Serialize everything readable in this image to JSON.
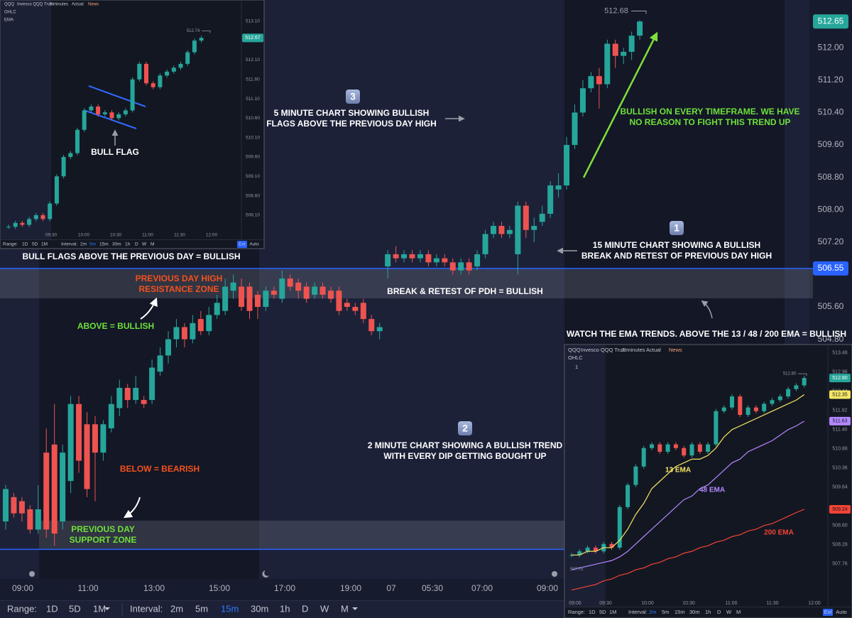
{
  "chart_data": [
    {
      "type": "candlestick",
      "ylim": [
        498.88,
        513.18
      ],
      "yticks": [
        {
          "value": 512,
          "label": "512.00"
        },
        {
          "value": 511.2,
          "label": "511.20"
        },
        {
          "value": 510.4,
          "label": "510.40"
        },
        {
          "value": 509.6,
          "label": "509.60"
        },
        {
          "value": 508.8,
          "label": "508.80"
        },
        {
          "value": 508,
          "label": "508.00"
        },
        {
          "value": 507.2,
          "label": "507.20"
        },
        {
          "value": 505.6,
          "label": "505.60"
        },
        {
          "value": 504.8,
          "label": "504.80"
        }
      ],
      "grid": false,
      "xticks": [
        "09:00",
        "11:00",
        "13:00",
        "15:00",
        "17:00",
        "19:00",
        "07",
        "05:30",
        "07:00",
        "09:00"
      ],
      "up_color": "#26a69a",
      "down_color": "#ef5350",
      "open": [
        500.3,
        500.9,
        500.8,
        500.6,
        500.1,
        502.0,
        502.2,
        500.3,
        501.3,
        503.2,
        502.7,
        502.7,
        502.0,
        502.6,
        503.1,
        503.6,
        503.3,
        503.3,
        503.3,
        504.0,
        504.4,
        504.8,
        505.1,
        504.8,
        505.3,
        505.0,
        505.4,
        505.5,
        506.0,
        506.1,
        506.1,
        505.9,
        505.6,
        506.0,
        505.8,
        506.3,
        506.2,
        506.1,
        505.9,
        506.1,
        506.0,
        506.0,
        505.7,
        505.6,
        505.7,
        505.3,
        505.0,
        506.6,
        506.9,
        506.8,
        506.9,
        506.8,
        506.9,
        506.7,
        506.8,
        506.7,
        506.5,
        506.7,
        506.6,
        506.9,
        507.4,
        507.6,
        507.4,
        506.9,
        508.1,
        507.5,
        507.7,
        507.9,
        508.5,
        508.6,
        509.6,
        510.4,
        511.0,
        511.3,
        511.1,
        512.1,
        511.8,
        511.9,
        512.3
      ],
      "high": [
        501.2,
        501.0,
        500.9,
        500.7,
        501.2,
        502.6,
        503.2,
        502.2,
        503.4,
        503.4,
        503.0,
        502.9,
        502.8,
        503.4,
        503.8,
        503.7,
        503.9,
        503.4,
        504.3,
        504.6,
        505.0,
        505.3,
        505.2,
        505.4,
        505.5,
        505.6,
        505.9,
        506.3,
        506.4,
        506.3,
        506.2,
        506.0,
        506.1,
        506.1,
        506.5,
        506.4,
        506.3,
        506.2,
        506.2,
        506.2,
        506.1,
        506.1,
        505.8,
        505.7,
        505.8,
        505.4,
        505.2,
        507.0,
        507.1,
        507.0,
        507.0,
        507.0,
        507.0,
        506.9,
        506.9,
        506.8,
        506.8,
        506.8,
        507.0,
        507.5,
        507.7,
        507.7,
        507.6,
        508.2,
        508.2,
        507.8,
        508.1,
        508.7,
        508.9,
        509.8,
        510.6,
        511.2,
        511.4,
        511.5,
        512.2,
        512.2,
        512.0,
        512.4,
        512.68
      ],
      "low": [
        500.1,
        500.4,
        500.3,
        500.0,
        500.0,
        499.9,
        499.7,
        500.1,
        501.0,
        501.5,
        500.9,
        500.8,
        501.8,
        502.5,
        502.9,
        503.1,
        503.2,
        503.1,
        503.2,
        503.9,
        504.2,
        504.6,
        504.6,
        504.7,
        504.9,
        504.9,
        505.3,
        505.4,
        505.8,
        505.5,
        505.3,
        505.3,
        505.5,
        505.8,
        505.7,
        506.0,
        505.8,
        505.7,
        505.8,
        505.8,
        505.7,
        505.4,
        505.5,
        505.4,
        505.2,
        504.9,
        504.8,
        506.3,
        506.7,
        506.7,
        506.7,
        506.7,
        506.6,
        506.6,
        506.6,
        506.4,
        506.4,
        506.4,
        506.5,
        506.8,
        507.3,
        507.3,
        507.3,
        506.4,
        507.3,
        507.2,
        507.6,
        507.8,
        508.3,
        508.5,
        509.5,
        510.3,
        510.9,
        510.5,
        511.0,
        511.5,
        511.6,
        511.7,
        512.2
      ],
      "close": [
        501.1,
        500.5,
        500.5,
        500.1,
        500.6,
        500.1,
        500.0,
        502.0,
        503.2,
        501.8,
        501.1,
        502.0,
        502.7,
        503.2,
        503.6,
        503.3,
        503.6,
        503.2,
        504.1,
        504.4,
        504.8,
        505.1,
        504.8,
        505.2,
        505.0,
        505.4,
        505.7,
        506.1,
        506.2,
        505.6,
        505.5,
        505.6,
        506.0,
        505.9,
        506.3,
        506.1,
        506.0,
        505.8,
        506.1,
        505.9,
        505.8,
        505.5,
        505.6,
        505.5,
        505.3,
        505.0,
        505.1,
        506.9,
        506.8,
        506.9,
        506.8,
        506.9,
        506.7,
        506.8,
        506.7,
        506.5,
        506.7,
        506.5,
        506.9,
        507.4,
        507.6,
        507.4,
        507.5,
        508.1,
        507.5,
        507.6,
        507.9,
        508.6,
        508.6,
        509.6,
        510.4,
        511.0,
        511.3,
        511.1,
        512.1,
        511.8,
        511.9,
        512.3,
        512.65
      ],
      "level": 506.55,
      "level_color": "#2962ff",
      "zones": [
        [
          505.81,
          506.55
        ],
        [
          499.61,
          500.32
        ]
      ]
    },
    {
      "type": "candlestick",
      "header": [
        "QQQ",
        "Invesco QQQ Trust",
        "5 minutes",
        "Actual",
        "News"
      ],
      "legend": [
        "OHLC",
        "EMA"
      ],
      "ylim": [
        507.75,
        513.39
      ],
      "yticks": [
        {
          "value": 513.1,
          "label": "513.10"
        },
        {
          "value": 512.6,
          "label": "512.60"
        },
        {
          "value": 512.1,
          "label": "512.10"
        },
        {
          "value": 511.6,
          "label": "511.60"
        },
        {
          "value": 511.1,
          "label": "511.10"
        },
        {
          "value": 510.6,
          "label": "510.60"
        },
        {
          "value": 510.1,
          "label": "510.10"
        },
        {
          "value": 509.6,
          "label": "509.60"
        },
        {
          "value": 509.1,
          "label": "509.10"
        },
        {
          "value": 508.6,
          "label": "508.60"
        },
        {
          "value": 508.1,
          "label": "508.10"
        }
      ],
      "xticks": [
        "09:30",
        "10:00",
        "10:30",
        "11:00",
        "11:30",
        "12:00"
      ],
      "close": [
        507.8,
        507.9,
        507.85,
        508.0,
        508.1,
        508.0,
        508.4,
        509.1,
        509.6,
        509.7,
        510.3,
        510.8,
        510.9,
        510.7,
        510.75,
        510.6,
        510.7,
        510.8,
        511.6,
        512.0,
        511.5,
        511.4,
        511.7,
        511.8,
        511.9,
        512.0,
        512.3,
        512.6,
        512.67
      ],
      "high_tag": 512.74,
      "annotation": "BULL FLAG",
      "toolbar": {
        "range_label": "Range:",
        "ranges": [
          "1D",
          "5D",
          "1M"
        ],
        "interval_label": "Interval:",
        "intervals": [
          "2m",
          "5m",
          "15m",
          "30m",
          "1h",
          "D",
          "W",
          "M"
        ],
        "active": "5m",
        "extras": [
          "Ext",
          "Auto"
        ]
      }
    },
    {
      "type": "candlestick",
      "header": [
        "QQQ",
        "Invesco QQQ Trust",
        "2 minutes",
        "Actual",
        "News"
      ],
      "legend": [
        "OHLC"
      ],
      "collapsed_count": "1",
      "ylim": [
        506.87,
        513.65
      ],
      "yticks": [
        513.48,
        512.96,
        512.44,
        511.92,
        {
          "value": 511.4,
          "label": "511.40"
        },
        510.88,
        510.36,
        509.84,
        {
          "value": 508.8,
          "label": "508.80"
        },
        508.28,
        507.76
      ],
      "xticks": [
        "09:06",
        "09:30",
        "10:00",
        "10:30",
        "11:00",
        "11:30",
        "12:00"
      ],
      "close": [
        508.0,
        508.1,
        508.2,
        508.1,
        508.3,
        508.2,
        509.3,
        509.9,
        510.4,
        510.9,
        511.0,
        510.8,
        511.0,
        510.9,
        510.7,
        511.0,
        510.8,
        511.0,
        511.9,
        512.0,
        512.3,
        511.8,
        512.0,
        511.9,
        512.1,
        512.2,
        512.3,
        512.5,
        512.6,
        512.8
      ],
      "series": [
        {
          "name": "13 EMA",
          "color": "#f5e663",
          "values": [
            508.0,
            508.0,
            508.1,
            508.1,
            508.2,
            508.2,
            508.4,
            508.7,
            509.1,
            509.4,
            509.8,
            510.0,
            510.2,
            510.4,
            510.5,
            510.6,
            510.6,
            510.7,
            510.9,
            511.2,
            511.4,
            511.5,
            511.6,
            511.7,
            511.8,
            511.9,
            512.0,
            512.1,
            512.2,
            512.35
          ]
        },
        {
          "name": "48 EMA",
          "color": "#b388ff",
          "values": [
            507.6,
            507.65,
            507.7,
            507.75,
            507.8,
            507.85,
            507.95,
            508.1,
            508.3,
            508.5,
            508.7,
            508.9,
            509.1,
            509.3,
            509.5,
            509.6,
            509.8,
            509.9,
            510.1,
            510.3,
            510.5,
            510.6,
            510.8,
            510.9,
            511.0,
            511.1,
            511.25,
            511.4,
            511.5,
            511.63
          ]
        },
        {
          "name": "200 EMA",
          "color": "#f44336",
          "values": [
            507.05,
            507.1,
            507.15,
            507.2,
            507.3,
            507.35,
            507.45,
            507.5,
            507.6,
            507.65,
            507.75,
            507.8,
            507.9,
            507.95,
            508.05,
            508.1,
            508.2,
            508.25,
            508.35,
            508.4,
            508.5,
            508.55,
            508.65,
            508.7,
            508.8,
            508.85,
            508.95,
            509.05,
            509.15,
            509.24
          ]
        }
      ],
      "price_tags": [
        {
          "value": 512.8,
          "label": "512.80",
          "color": "#26a69a"
        },
        {
          "value": 512.35,
          "color": "#f5e663"
        },
        {
          "value": 511.63,
          "color": "#b388ff"
        },
        {
          "value": 509.24,
          "color": "#f44336"
        }
      ],
      "high_tag": {
        "value": 512.8,
        "label": "512.80"
      },
      "low_tag": 507.75,
      "toolbar": {
        "range_label": "Range:",
        "ranges": [
          "1D",
          "5D",
          "1M"
        ],
        "interval_label": "Interval:",
        "intervals": [
          "2m",
          "5m",
          "15m",
          "30m",
          "1h",
          "D",
          "W",
          "M"
        ],
        "active": "2m",
        "extras": [
          "Ext",
          "Auto"
        ]
      }
    }
  ],
  "annotations": [
    {
      "lines": [
        "BULL FLAGS ABOVE THE PREVIOUS DAY = BULLISH"
      ],
      "color": "#ffffff"
    },
    {
      "lines": [
        "PREVIOUS DAY HIGH",
        "RESISTANCE ZONE"
      ],
      "color": "#f4511e"
    },
    {
      "lines": [
        "ABOVE = BULLISH"
      ],
      "color": "#6fe03a"
    },
    {
      "lines": [
        "BELOW = BEARISH"
      ],
      "color": "#f4511e"
    },
    {
      "lines": [
        "PREVIOUS DAY",
        "SUPPORT ZONE"
      ],
      "color": "#6fe03a"
    },
    {
      "lines": [
        "BREAK & RETEST OF PDH = BULLISH"
      ],
      "color": "#ffffff"
    },
    {
      "badge": "3",
      "lines": [
        "5 MINUTE CHART SHOWING BULLISH",
        "FLAGS ABOVE THE PREVIOUS DAY HIGH"
      ],
      "color": "#ffffff"
    },
    {
      "badge": "1",
      "lines": [
        "15 MINUTE CHART SHOWING A BULLISH",
        "BREAK AND RETEST OF PREVIOUS DAY HIGH"
      ],
      "color": "#ffffff"
    },
    {
      "lines": [
        "BULLISH ON EVERY TIMEFRAME. WE HAVE",
        "NO REASON TO FIGHT THIS TREND UP"
      ],
      "color": "#6fe03a"
    },
    {
      "badge": "2",
      "lines": [
        "2 MINUTE CHART SHOWING A BULLISH TREND",
        "WITH EVERY DIP GETTING BOUGHT UP"
      ],
      "color": "#ffffff"
    },
    {
      "lines": [
        "WATCH THE EMA TRENDS. ABOVE THE 13 / 48 / 200 EMA = BULLISH"
      ],
      "color": "#ffffff"
    }
  ],
  "toolbar": {
    "range_label": "Range:",
    "ranges": [
      "1D",
      "5D",
      "1M"
    ],
    "interval_label": "Interval:",
    "intervals": [
      "2m",
      "5m",
      "15m",
      "30m",
      "1h",
      "D",
      "W",
      "M"
    ],
    "active": "15m"
  }
}
